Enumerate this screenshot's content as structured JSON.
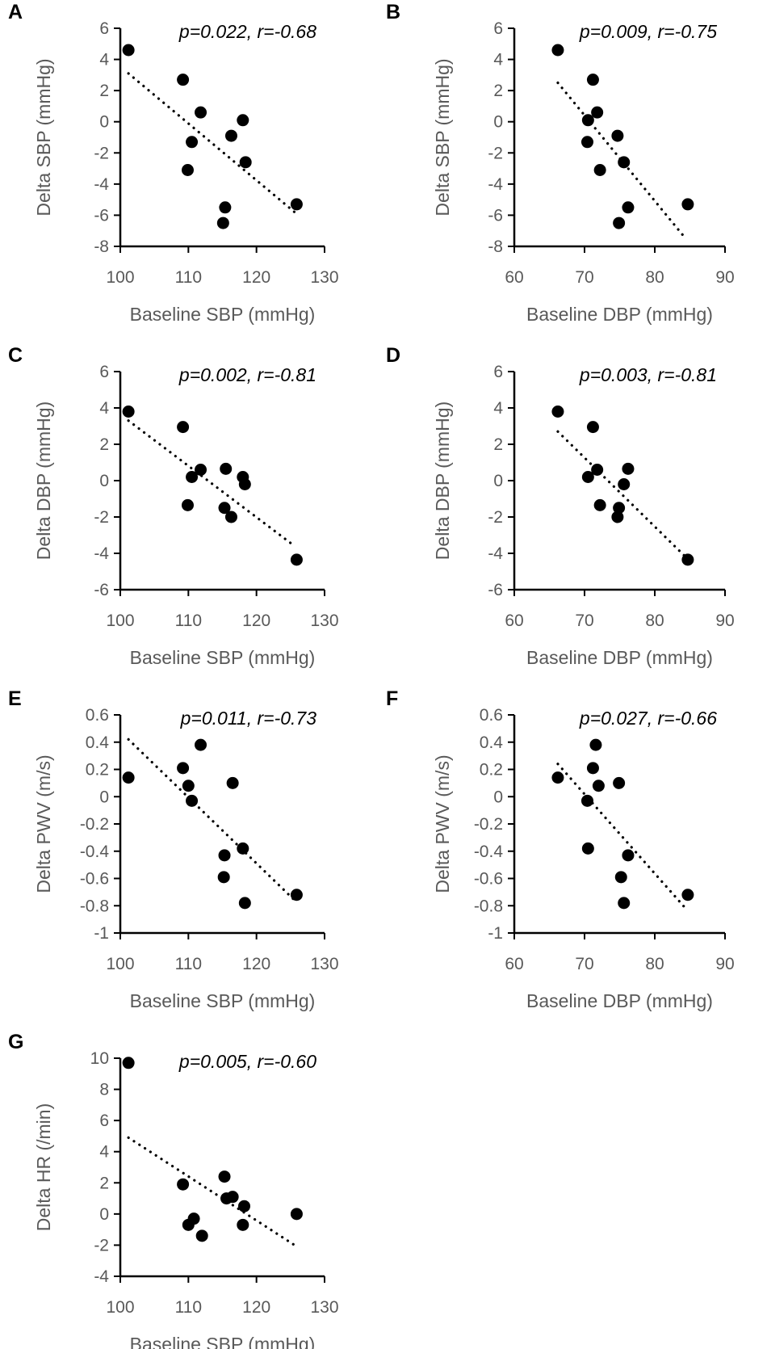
{
  "chart_data": [
    {
      "type": "scatter",
      "panel": "A",
      "annotation": "p=0.022, r=-0.68",
      "xlabel": "Baseline SBP (mmHg)",
      "ylabel": "Delta SBP (mmHg)",
      "xlim": [
        100,
        130
      ],
      "xticks": [
        100,
        110,
        120,
        130
      ],
      "ylim": [
        -8,
        6
      ],
      "yticks": [
        -8,
        -6,
        -4,
        -2,
        0,
        2,
        4,
        6
      ],
      "points": [
        [
          101.2,
          4.6
        ],
        [
          109.2,
          2.7
        ],
        [
          111.8,
          0.6
        ],
        [
          110.5,
          -1.3
        ],
        [
          109.9,
          -3.1
        ],
        [
          116.3,
          -0.9
        ],
        [
          118.0,
          0.1
        ],
        [
          118.4,
          -2.6
        ],
        [
          115.4,
          -5.5
        ],
        [
          115.1,
          -6.5
        ],
        [
          125.9,
          -5.3
        ]
      ],
      "trendline": [
        [
          101.2,
          3.1
        ],
        [
          125.6,
          -5.8
        ]
      ]
    },
    {
      "type": "scatter",
      "panel": "B",
      "annotation": "p=0.009, r=-0.75",
      "xlabel": "Baseline DBP (mmHg)",
      "ylabel": "Delta SBP (mmHg)",
      "xlim": [
        60,
        90
      ],
      "xticks": [
        60,
        70,
        80,
        90
      ],
      "ylim": [
        -8,
        6
      ],
      "yticks": [
        -8,
        -6,
        -4,
        -2,
        0,
        2,
        4,
        6
      ],
      "points": [
        [
          66.2,
          4.6
        ],
        [
          71.2,
          2.7
        ],
        [
          71.8,
          0.6
        ],
        [
          70.5,
          0.1
        ],
        [
          70.4,
          -1.3
        ],
        [
          72.2,
          -3.1
        ],
        [
          74.7,
          -0.9
        ],
        [
          75.6,
          -2.6
        ],
        [
          76.2,
          -5.5
        ],
        [
          74.9,
          -6.5
        ],
        [
          84.7,
          -5.3
        ]
      ],
      "trendline": [
        [
          66.2,
          2.5
        ],
        [
          84.4,
          -7.5
        ]
      ]
    },
    {
      "type": "scatter",
      "panel": "C",
      "annotation": "p=0.002, r=-0.81",
      "xlabel": "Baseline SBP (mmHg)",
      "ylabel": "Delta DBP (mmHg)",
      "xlim": [
        100,
        130
      ],
      "xticks": [
        100,
        110,
        120,
        130
      ],
      "ylim": [
        -6,
        6
      ],
      "yticks": [
        -6,
        -4,
        -2,
        0,
        2,
        4,
        6
      ],
      "points": [
        [
          101.2,
          3.8
        ],
        [
          109.2,
          2.95
        ],
        [
          111.8,
          0.6
        ],
        [
          110.5,
          0.2
        ],
        [
          109.9,
          -1.35
        ],
        [
          115.5,
          0.65
        ],
        [
          118.0,
          0.2
        ],
        [
          118.3,
          -0.2
        ],
        [
          115.3,
          -1.5
        ],
        [
          116.3,
          -2.0
        ],
        [
          125.9,
          -4.35
        ]
      ],
      "trendline": [
        [
          101.2,
          3.3
        ],
        [
          125.6,
          -3.6
        ]
      ]
    },
    {
      "type": "scatter",
      "panel": "D",
      "annotation": "p=0.003, r=-0.81",
      "xlabel": "Baseline DBP (mmHg)",
      "ylabel": "Delta DBP (mmHg)",
      "xlim": [
        60,
        90
      ],
      "xticks": [
        60,
        70,
        80,
        90
      ],
      "ylim": [
        -6,
        6
      ],
      "yticks": [
        -6,
        -4,
        -2,
        0,
        2,
        4,
        6
      ],
      "points": [
        [
          66.2,
          3.8
        ],
        [
          71.2,
          2.95
        ],
        [
          71.8,
          0.6
        ],
        [
          70.5,
          0.2
        ],
        [
          72.2,
          -1.35
        ],
        [
          76.2,
          0.65
        ],
        [
          75.6,
          -0.2
        ],
        [
          74.9,
          -1.5
        ],
        [
          74.7,
          -2.0
        ],
        [
          84.7,
          -4.35
        ]
      ],
      "trendline": [
        [
          66.2,
          2.7
        ],
        [
          84.4,
          -4.2
        ]
      ]
    },
    {
      "type": "scatter",
      "panel": "E",
      "annotation": "p=0.011, r=-0.73",
      "xlabel": "Baseline SBP (mmHg)",
      "ylabel": "Delta PWV (m/s)",
      "xlim": [
        100,
        130
      ],
      "xticks": [
        100,
        110,
        120,
        130
      ],
      "ylim": [
        -1,
        0.6
      ],
      "yticks": [
        -1,
        -0.8,
        -0.6,
        -0.4,
        -0.2,
        0,
        0.2,
        0.4,
        0.6
      ],
      "points": [
        [
          101.2,
          0.14
        ],
        [
          109.2,
          0.21
        ],
        [
          111.8,
          0.38
        ],
        [
          110.0,
          0.08
        ],
        [
          110.5,
          -0.03
        ],
        [
          116.5,
          0.1
        ],
        [
          115.3,
          -0.43
        ],
        [
          118.0,
          -0.38
        ],
        [
          115.2,
          -0.59
        ],
        [
          118.3,
          -0.78
        ],
        [
          125.9,
          -0.72
        ]
      ],
      "trendline": [
        [
          101.2,
          0.42
        ],
        [
          125.6,
          -0.76
        ]
      ]
    },
    {
      "type": "scatter",
      "panel": "F",
      "annotation": "p=0.027, r=-0.66",
      "xlabel": "Baseline DBP (mmHg)",
      "ylabel": "Delta PWV (m/s)",
      "xlim": [
        60,
        90
      ],
      "xticks": [
        60,
        70,
        80,
        90
      ],
      "ylim": [
        -1,
        0.6
      ],
      "yticks": [
        -1,
        -0.8,
        -0.6,
        -0.4,
        -0.2,
        0,
        0.2,
        0.4,
        0.6
      ],
      "points": [
        [
          66.2,
          0.14
        ],
        [
          71.6,
          0.38
        ],
        [
          71.2,
          0.21
        ],
        [
          72.0,
          0.08
        ],
        [
          70.4,
          -0.03
        ],
        [
          74.9,
          0.1
        ],
        [
          70.5,
          -0.38
        ],
        [
          76.2,
          -0.43
        ],
        [
          75.2,
          -0.59
        ],
        [
          75.6,
          -0.78
        ],
        [
          84.7,
          -0.72
        ]
      ],
      "trendline": [
        [
          66.2,
          0.24
        ],
        [
          84.4,
          -0.82
        ]
      ]
    },
    {
      "type": "scatter",
      "panel": "G",
      "annotation": "p=0.005, r=-0.60",
      "xlabel": "Baseline SBP (mmHg)",
      "ylabel": "Delta HR (/min)",
      "xlim": [
        100,
        130
      ],
      "xticks": [
        100,
        110,
        120,
        130
      ],
      "ylim": [
        -4,
        10
      ],
      "yticks": [
        -4,
        -2,
        0,
        2,
        4,
        6,
        8,
        10
      ],
      "points": [
        [
          101.2,
          9.7
        ],
        [
          109.2,
          1.9
        ],
        [
          110.8,
          -0.3
        ],
        [
          110.0,
          -0.7
        ],
        [
          112.0,
          -1.4
        ],
        [
          115.3,
          2.4
        ],
        [
          115.6,
          1.0
        ],
        [
          116.5,
          1.1
        ],
        [
          118.2,
          0.5
        ],
        [
          118.0,
          -0.7
        ],
        [
          125.9,
          0.0
        ]
      ],
      "trendline": [
        [
          101.2,
          4.9
        ],
        [
          125.6,
          -2.0
        ]
      ]
    }
  ]
}
